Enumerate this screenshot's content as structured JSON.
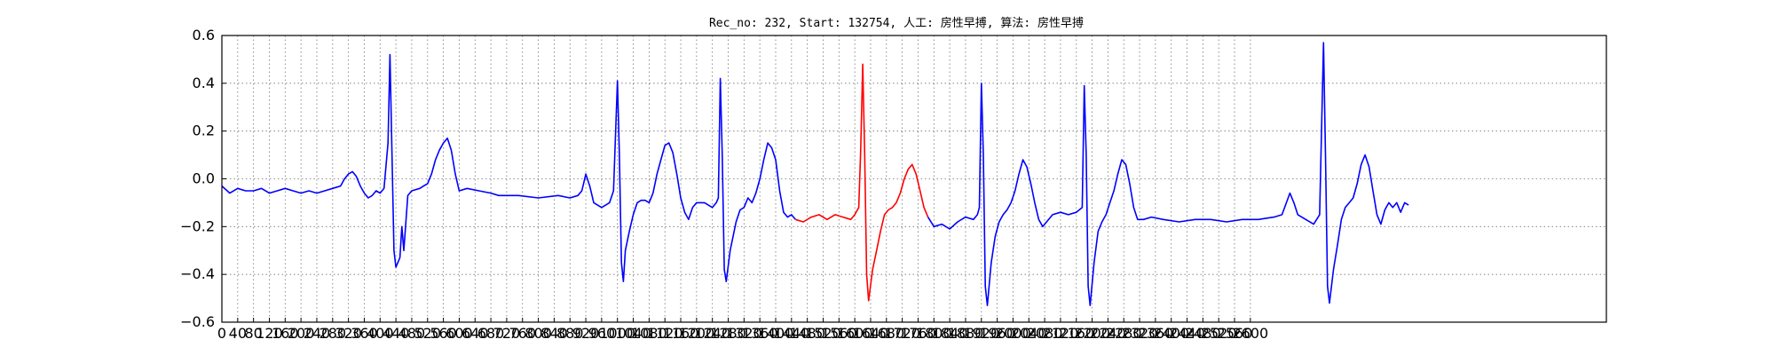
{
  "chart_data": {
    "type": "line",
    "title": "Rec_no: 232, Start: 132754, 人工: 房性早搏, 算法: 房性早搏",
    "xlabel": "",
    "ylabel": "",
    "xlim": [
      0,
      3500
    ],
    "ylim": [
      -0.6,
      0.6
    ],
    "grid": true,
    "x_tick_labels": [
      "0",
      "40",
      "80",
      "120",
      "160",
      "200",
      "240",
      "280",
      "320",
      "360",
      "400",
      "440",
      "480",
      "520",
      "560",
      "600",
      "640",
      "680",
      "720",
      "760",
      "800",
      "840",
      "880",
      "920",
      "960",
      "1000",
      "1040",
      "1080",
      "1120",
      "1160",
      "1200",
      "1240",
      "1280",
      "1320",
      "1360",
      "1400",
      "1440",
      "1480",
      "1520",
      "1560",
      "1600",
      "1640",
      "1680",
      "1720",
      "1760",
      "1800",
      "1840",
      "1880",
      "1920",
      "1960",
      "2000",
      "2040",
      "2080",
      "2120",
      "2160",
      "2200",
      "2240",
      "2280",
      "2320",
      "2360",
      "2400",
      "2440",
      "2480",
      "2520",
      "2560",
      "2600"
    ],
    "y_ticks": [
      -0.6,
      -0.4,
      -0.2,
      0.0,
      0.2,
      0.4,
      0.6
    ],
    "y_tick_labels": [
      "−0.6",
      "−0.4",
      "−0.2",
      "0.0",
      "0.2",
      "0.4",
      "0.6"
    ],
    "series": [
      {
        "color": "#0000ff",
        "points": [
          [
            0,
            -0.03
          ],
          [
            20,
            -0.06
          ],
          [
            40,
            -0.04
          ],
          [
            60,
            -0.05
          ],
          [
            80,
            -0.05
          ],
          [
            100,
            -0.04
          ],
          [
            120,
            -0.06
          ],
          [
            140,
            -0.05
          ],
          [
            160,
            -0.04
          ],
          [
            180,
            -0.05
          ],
          [
            200,
            -0.06
          ],
          [
            220,
            -0.05
          ],
          [
            240,
            -0.06
          ],
          [
            260,
            -0.05
          ],
          [
            280,
            -0.04
          ],
          [
            300,
            -0.03
          ],
          [
            310,
            0.0
          ],
          [
            320,
            0.02
          ],
          [
            330,
            0.03
          ],
          [
            340,
            0.01
          ],
          [
            350,
            -0.03
          ],
          [
            360,
            -0.06
          ],
          [
            370,
            -0.08
          ],
          [
            380,
            -0.07
          ],
          [
            390,
            -0.05
          ],
          [
            400,
            -0.06
          ],
          [
            410,
            -0.04
          ],
          [
            420,
            0.15
          ],
          [
            425,
            0.52
          ],
          [
            430,
            0.1
          ],
          [
            435,
            -0.3
          ],
          [
            440,
            -0.37
          ],
          [
            450,
            -0.33
          ],
          [
            455,
            -0.2
          ],
          [
            460,
            -0.3
          ],
          [
            470,
            -0.07
          ],
          [
            480,
            -0.05
          ],
          [
            500,
            -0.04
          ],
          [
            510,
            -0.03
          ],
          [
            520,
            -0.02
          ],
          [
            530,
            0.02
          ],
          [
            540,
            0.08
          ],
          [
            550,
            0.12
          ],
          [
            560,
            0.15
          ],
          [
            570,
            0.17
          ],
          [
            580,
            0.12
          ],
          [
            590,
            0.02
          ],
          [
            600,
            -0.05
          ],
          [
            620,
            -0.04
          ],
          [
            650,
            -0.05
          ],
          [
            680,
            -0.06
          ],
          [
            700,
            -0.07
          ],
          [
            750,
            -0.07
          ],
          [
            800,
            -0.08
          ],
          [
            850,
            -0.07
          ],
          [
            880,
            -0.08
          ],
          [
            900,
            -0.07
          ],
          [
            910,
            -0.05
          ],
          [
            920,
            0.02
          ],
          [
            930,
            -0.03
          ],
          [
            940,
            -0.1
          ],
          [
            960,
            -0.12
          ],
          [
            980,
            -0.1
          ],
          [
            990,
            -0.05
          ],
          [
            1000,
            0.41
          ],
          [
            1005,
            0.1
          ],
          [
            1010,
            -0.35
          ],
          [
            1015,
            -0.43
          ],
          [
            1020,
            -0.3
          ],
          [
            1030,
            -0.22
          ],
          [
            1040,
            -0.15
          ],
          [
            1050,
            -0.1
          ],
          [
            1060,
            -0.09
          ],
          [
            1070,
            -0.09
          ],
          [
            1080,
            -0.1
          ],
          [
            1090,
            -0.06
          ],
          [
            1100,
            0.02
          ],
          [
            1110,
            0.08
          ],
          [
            1120,
            0.14
          ],
          [
            1130,
            0.15
          ],
          [
            1140,
            0.11
          ],
          [
            1150,
            0.02
          ],
          [
            1160,
            -0.08
          ],
          [
            1170,
            -0.14
          ],
          [
            1180,
            -0.17
          ],
          [
            1190,
            -0.12
          ],
          [
            1200,
            -0.1
          ],
          [
            1220,
            -0.1
          ],
          [
            1240,
            -0.12
          ],
          [
            1250,
            -0.1
          ],
          [
            1255,
            -0.08
          ],
          [
            1260,
            0.42
          ],
          [
            1265,
            0.1
          ],
          [
            1270,
            -0.38
          ],
          [
            1275,
            -0.43
          ],
          [
            1285,
            -0.3
          ],
          [
            1300,
            -0.18
          ],
          [
            1310,
            -0.13
          ],
          [
            1320,
            -0.12
          ],
          [
            1330,
            -0.08
          ],
          [
            1340,
            -0.1
          ],
          [
            1350,
            -0.06
          ],
          [
            1360,
            0.0
          ],
          [
            1370,
            0.08
          ],
          [
            1380,
            0.15
          ],
          [
            1390,
            0.13
          ],
          [
            1400,
            0.08
          ],
          [
            1410,
            -0.05
          ],
          [
            1420,
            -0.14
          ],
          [
            1430,
            -0.16
          ],
          [
            1440,
            -0.15
          ],
          [
            1450,
            -0.17
          ]
        ]
      },
      {
        "color": "#ff0000",
        "points": [
          [
            1450,
            -0.17
          ],
          [
            1470,
            -0.18
          ],
          [
            1490,
            -0.16
          ],
          [
            1510,
            -0.15
          ],
          [
            1530,
            -0.17
          ],
          [
            1550,
            -0.15
          ],
          [
            1570,
            -0.16
          ],
          [
            1590,
            -0.17
          ],
          [
            1600,
            -0.15
          ],
          [
            1610,
            -0.12
          ],
          [
            1615,
            0.12
          ],
          [
            1620,
            0.48
          ],
          [
            1625,
            0.1
          ],
          [
            1630,
            -0.4
          ],
          [
            1635,
            -0.51
          ],
          [
            1645,
            -0.38
          ],
          [
            1655,
            -0.3
          ],
          [
            1665,
            -0.22
          ],
          [
            1675,
            -0.15
          ],
          [
            1685,
            -0.13
          ],
          [
            1695,
            -0.12
          ],
          [
            1705,
            -0.1
          ],
          [
            1715,
            -0.06
          ],
          [
            1725,
            0.0
          ],
          [
            1735,
            0.04
          ],
          [
            1745,
            0.06
          ],
          [
            1755,
            0.02
          ],
          [
            1765,
            -0.05
          ],
          [
            1775,
            -0.12
          ],
          [
            1785,
            -0.16
          ]
        ]
      },
      {
        "color": "#0000ff",
        "points": [
          [
            1785,
            -0.16
          ],
          [
            1800,
            -0.2
          ],
          [
            1820,
            -0.19
          ],
          [
            1840,
            -0.21
          ],
          [
            1860,
            -0.18
          ],
          [
            1880,
            -0.16
          ],
          [
            1900,
            -0.17
          ],
          [
            1910,
            -0.15
          ],
          [
            1915,
            -0.12
          ],
          [
            1920,
            0.4
          ],
          [
            1925,
            0.1
          ],
          [
            1930,
            -0.45
          ],
          [
            1935,
            -0.53
          ],
          [
            1945,
            -0.35
          ],
          [
            1955,
            -0.24
          ],
          [
            1965,
            -0.18
          ],
          [
            1975,
            -0.15
          ],
          [
            1985,
            -0.13
          ],
          [
            1995,
            -0.1
          ],
          [
            2005,
            -0.05
          ],
          [
            2015,
            0.02
          ],
          [
            2025,
            0.08
          ],
          [
            2035,
            0.05
          ],
          [
            2045,
            -0.02
          ],
          [
            2055,
            -0.1
          ],
          [
            2065,
            -0.17
          ],
          [
            2075,
            -0.2
          ],
          [
            2085,
            -0.18
          ],
          [
            2100,
            -0.15
          ],
          [
            2120,
            -0.14
          ],
          [
            2140,
            -0.15
          ],
          [
            2160,
            -0.14
          ],
          [
            2175,
            -0.12
          ],
          [
            2180,
            0.39
          ],
          [
            2185,
            0.1
          ],
          [
            2190,
            -0.45
          ],
          [
            2195,
            -0.53
          ],
          [
            2205,
            -0.35
          ],
          [
            2215,
            -0.22
          ],
          [
            2225,
            -0.18
          ],
          [
            2235,
            -0.15
          ],
          [
            2245,
            -0.1
          ],
          [
            2255,
            -0.05
          ],
          [
            2265,
            0.02
          ],
          [
            2275,
            0.08
          ],
          [
            2285,
            0.06
          ],
          [
            2295,
            -0.02
          ],
          [
            2305,
            -0.12
          ],
          [
            2315,
            -0.17
          ],
          [
            2330,
            -0.17
          ],
          [
            2350,
            -0.16
          ],
          [
            2380,
            -0.17
          ],
          [
            2420,
            -0.18
          ],
          [
            2460,
            -0.17
          ],
          [
            2500,
            -0.17
          ],
          [
            2540,
            -0.18
          ],
          [
            2580,
            -0.17
          ],
          [
            2620,
            -0.17
          ],
          [
            2660,
            -0.16
          ],
          [
            2680,
            -0.15
          ],
          [
            2700,
            -0.06
          ],
          [
            2710,
            -0.1
          ],
          [
            2720,
            -0.15
          ],
          [
            2740,
            -0.17
          ],
          [
            2760,
            -0.19
          ],
          [
            2775,
            -0.15
          ],
          [
            2785,
            0.57
          ],
          [
            2790,
            0.1
          ],
          [
            2795,
            -0.45
          ],
          [
            2800,
            -0.52
          ],
          [
            2810,
            -0.38
          ],
          [
            2820,
            -0.28
          ],
          [
            2830,
            -0.17
          ],
          [
            2840,
            -0.12
          ],
          [
            2850,
            -0.1
          ],
          [
            2860,
            -0.08
          ],
          [
            2870,
            -0.02
          ],
          [
            2880,
            0.06
          ],
          [
            2890,
            0.1
          ],
          [
            2900,
            0.05
          ],
          [
            2910,
            -0.05
          ],
          [
            2920,
            -0.15
          ],
          [
            2930,
            -0.19
          ],
          [
            2940,
            -0.13
          ],
          [
            2950,
            -0.1
          ],
          [
            2960,
            -0.12
          ],
          [
            2970,
            -0.1
          ],
          [
            2980,
            -0.14
          ],
          [
            2990,
            -0.1
          ],
          [
            3000,
            -0.11
          ]
        ]
      }
    ]
  }
}
